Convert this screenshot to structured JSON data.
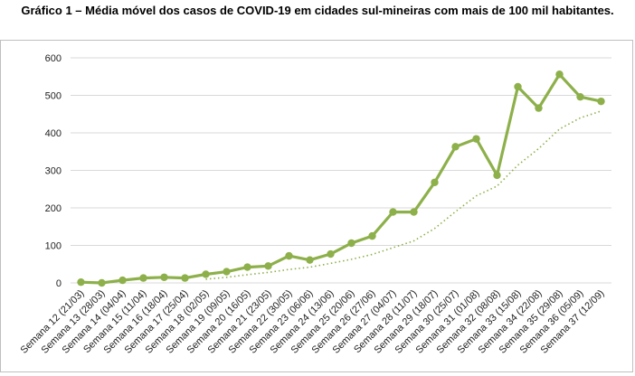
{
  "chart_data": {
    "type": "line",
    "title": "Gráfico 1 – Média móvel dos casos de COVID-19 em cidades sul-mineiras com mais de 100 mil habitantes.",
    "xlabel": "",
    "ylabel": "",
    "ylim": [
      0,
      600
    ],
    "yticks": [
      0,
      100,
      200,
      300,
      400,
      500,
      600
    ],
    "grid": true,
    "legend": "none",
    "categories": [
      "Semana 12 (21/03)",
      "Semana 13 (28/03)",
      "Semana 14 (04/04)",
      "Semana 15 (11/04)",
      "Semana 16 (18/04)",
      "Semana 17 (25/04)",
      "Semana 18 (02/05)",
      "Semana 19 (09/05)",
      "Semana 20 (16/05)",
      "Semana 21 (23/05)",
      "Semana 22 (30/05)",
      "Semana 23 (06/06)",
      "Semana 24 (13/06)",
      "Semana 25 (20/06)",
      "Semana 26 (27/06)",
      "Semana 27 (04/07)",
      "Semana 28 (11/07)",
      "Semana 29 (18/07)",
      "Semana 30 (25/07)",
      "Semana 31 (01/08)",
      "Semana 32 (08/08)",
      "Semana 33 (15/08)",
      "Semana 34 (22/08)",
      "Semana 35 (29/08)",
      "Semana 36 (05/09)",
      "Semana 37 (12/09)"
    ],
    "series": [
      {
        "values": [
          2,
          0,
          7,
          13,
          15,
          13,
          23,
          30,
          42,
          45,
          72,
          61,
          77,
          106,
          125,
          189,
          189,
          268,
          363,
          384,
          287,
          523,
          466,
          556,
          496,
          484
        ],
        "color": "#8db04a",
        "style": "solid",
        "markers": true
      },
      {
        "values": [
          null,
          null,
          null,
          null,
          null,
          null,
          10,
          15,
          22,
          28,
          36,
          42,
          52,
          63,
          76,
          94,
          112,
          145,
          190,
          232,
          258,
          314,
          358,
          410,
          440,
          458
        ],
        "color": "#8db04a",
        "style": "dotted",
        "markers": false
      }
    ]
  }
}
